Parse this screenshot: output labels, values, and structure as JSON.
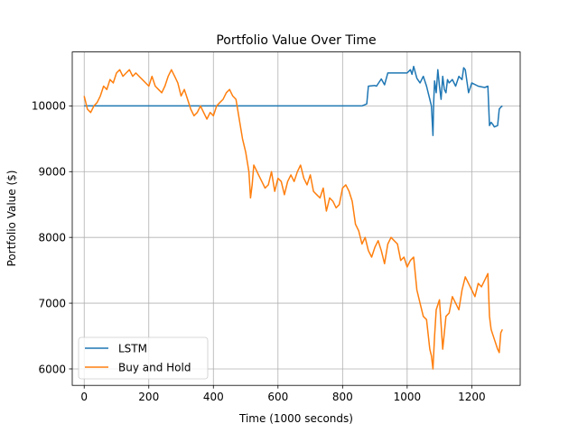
{
  "chart_data": {
    "type": "line",
    "title": "Portfolio Value Over Time",
    "xlabel": "Time (1000 seconds)",
    "ylabel": "Portfolio Value ($)",
    "xlim": [
      -37,
      1350
    ],
    "ylim": [
      5750,
      10820
    ],
    "x_ticks": [
      0,
      200,
      400,
      600,
      800,
      1000,
      1200
    ],
    "y_ticks": [
      6000,
      7000,
      8000,
      9000,
      10000
    ],
    "grid": true,
    "legend_position": "lower-left",
    "series": [
      {
        "name": "LSTM",
        "color": "#1f77b4",
        "x": [
          0,
          200,
          400,
          600,
          800,
          860,
          870,
          875,
          880,
          900,
          905,
          920,
          930,
          940,
          960,
          1000,
          1010,
          1015,
          1020,
          1030,
          1040,
          1050,
          1060,
          1065,
          1070,
          1075,
          1080,
          1082,
          1085,
          1090,
          1095,
          1100,
          1105,
          1110,
          1115,
          1120,
          1125,
          1130,
          1140,
          1150,
          1160,
          1170,
          1175,
          1180,
          1190,
          1200,
          1220,
          1240,
          1250,
          1255,
          1260,
          1265,
          1270,
          1280,
          1285,
          1290,
          1295
        ],
        "y": [
          10000,
          10000,
          10000,
          10000,
          10000,
          10000,
          10020,
          10030,
          10300,
          10310,
          10300,
          10410,
          10320,
          10500,
          10500,
          10500,
          10550,
          10480,
          10600,
          10420,
          10350,
          10450,
          10300,
          10200,
          10100,
          10000,
          9550,
          10050,
          10380,
          10200,
          10550,
          10300,
          10100,
          10450,
          10250,
          10200,
          10400,
          10350,
          10400,
          10300,
          10450,
          10400,
          10580,
          10550,
          10200,
          10350,
          10300,
          10280,
          10300,
          9700,
          9750,
          9720,
          9680,
          9700,
          9950,
          9980,
          10000
        ]
      },
      {
        "name": "Buy and Hold",
        "color": "#ff7f0e",
        "x": [
          0,
          5,
          10,
          20,
          30,
          40,
          50,
          60,
          70,
          80,
          90,
          100,
          110,
          120,
          130,
          140,
          150,
          160,
          170,
          180,
          190,
          200,
          210,
          220,
          230,
          240,
          250,
          260,
          270,
          280,
          290,
          300,
          310,
          320,
          330,
          340,
          350,
          360,
          370,
          380,
          390,
          400,
          410,
          420,
          430,
          440,
          450,
          460,
          470,
          480,
          490,
          500,
          510,
          515,
          520,
          525,
          530,
          540,
          550,
          560,
          570,
          580,
          590,
          600,
          610,
          620,
          630,
          640,
          650,
          660,
          670,
          680,
          690,
          700,
          710,
          720,
          730,
          740,
          750,
          760,
          770,
          780,
          790,
          800,
          810,
          820,
          830,
          840,
          850,
          860,
          870,
          880,
          890,
          900,
          910,
          920,
          930,
          940,
          950,
          960,
          970,
          980,
          990,
          1000,
          1010,
          1020,
          1030,
          1040,
          1050,
          1060,
          1070,
          1075,
          1080,
          1085,
          1090,
          1100,
          1110,
          1120,
          1130,
          1140,
          1150,
          1160,
          1170,
          1180,
          1190,
          1200,
          1210,
          1220,
          1230,
          1240,
          1250,
          1255,
          1260,
          1270,
          1280,
          1285,
          1290,
          1295
        ],
        "y": [
          10150,
          10050,
          9950,
          9900,
          10000,
          10050,
          10150,
          10300,
          10250,
          10400,
          10350,
          10500,
          10550,
          10450,
          10500,
          10550,
          10450,
          10500,
          10450,
          10400,
          10350,
          10300,
          10450,
          10300,
          10250,
          10200,
          10300,
          10450,
          10550,
          10450,
          10350,
          10150,
          10250,
          10100,
          9950,
          9850,
          9900,
          10000,
          9900,
          9800,
          9900,
          9850,
          10000,
          10050,
          10100,
          10200,
          10250,
          10150,
          10100,
          9800,
          9500,
          9300,
          9000,
          8600,
          8800,
          9100,
          9050,
          8950,
          8850,
          8750,
          8800,
          9000,
          8700,
          8900,
          8850,
          8650,
          8850,
          8950,
          8850,
          9000,
          9100,
          8900,
          8800,
          8950,
          8700,
          8650,
          8600,
          8750,
          8400,
          8600,
          8550,
          8450,
          8500,
          8750,
          8800,
          8700,
          8550,
          8200,
          8100,
          7900,
          8000,
          7800,
          7700,
          7850,
          7950,
          7800,
          7600,
          7900,
          8000,
          7950,
          7900,
          7650,
          7700,
          7550,
          7650,
          7700,
          7200,
          7000,
          6800,
          6750,
          6300,
          6200,
          6000,
          6500,
          6900,
          7050,
          6300,
          6800,
          6850,
          7100,
          7000,
          6900,
          7200,
          7400,
          7300,
          7200,
          7100,
          7300,
          7250,
          7350,
          7450,
          6800,
          6600,
          6450,
          6300,
          6250,
          6550,
          6600
        ]
      }
    ]
  }
}
